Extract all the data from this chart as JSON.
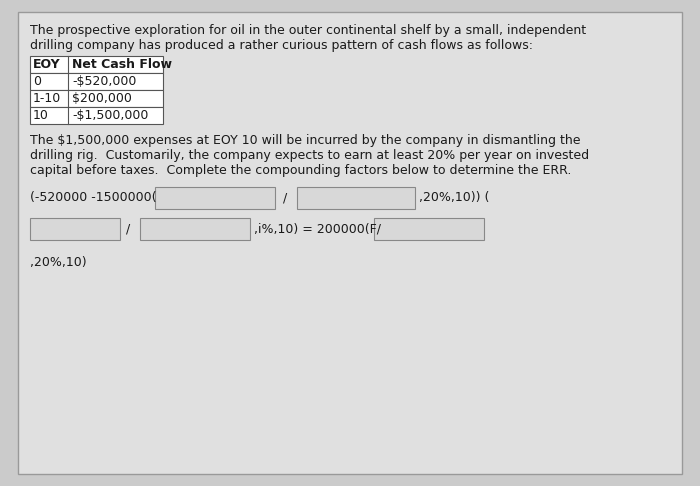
{
  "bg_color": "#cbcbcb",
  "panel_color": "#e0e0e0",
  "panel_border_color": "#999999",
  "text_color": "#1a1a1a",
  "title_line1": "The prospective exploration for oil in the outer continental shelf by a small, independent",
  "title_line2": "drilling company has produced a rather curious pattern of cash flows as follows:",
  "table_headers": [
    "EOY",
    "Net Cash Flow"
  ],
  "table_rows": [
    [
      "0",
      "-$520,000"
    ],
    [
      "1-10",
      "$200,000"
    ],
    [
      "10",
      "-$1,500,000"
    ]
  ],
  "para_line1": "The $1,500,000 expenses at EOY 10 will be incurred by the company in dismantling the",
  "para_line2": "drilling rig.  Customarily, the company expects to earn at least 20% per year on invested",
  "para_line3": "capital before taxes.  Complete the compounding factors below to determine the ERR.",
  "eq_line1_prefix": "(-520000 -1500000(",
  "eq_line1_slash": "/",
  "eq_line1_suffix": ",20%,10)) (",
  "eq_line2_slash": "/",
  "eq_line2_mid": ",i%,10) = 200000(F/",
  "eq_line3": ",20%,10)",
  "box_color": "#d8d8d8",
  "box_border_color": "#888888",
  "font_size": 9.0,
  "font_family": "DejaVu Sans"
}
